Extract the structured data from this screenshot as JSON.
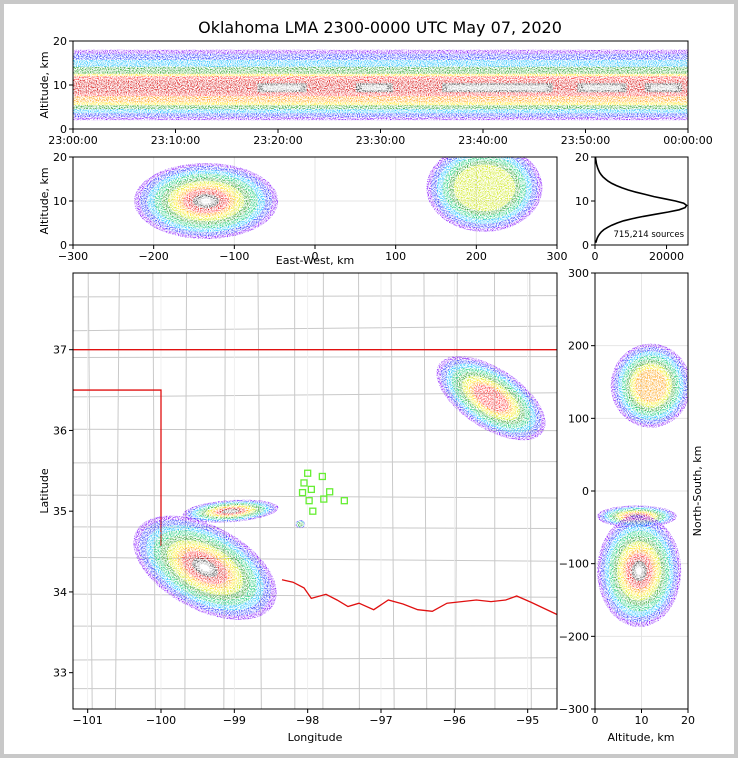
{
  "chart_data": [
    {
      "id": "time-height",
      "type": "heatmap",
      "title": "Oklahoma LMA 2300-0000 UTC May 07, 2020",
      "xlabel": "",
      "ylabel": "Altitude, km",
      "xlim": [
        0,
        60
      ],
      "ylim": [
        0,
        20
      ],
      "x_ticks": [
        {
          "v": 0,
          "label": "23:00:00"
        },
        {
          "v": 10,
          "label": "23:10:00"
        },
        {
          "v": 20,
          "label": "23:20:00"
        },
        {
          "v": 30,
          "label": "23:30:00"
        },
        {
          "v": 40,
          "label": "23:40:00"
        },
        {
          "v": 50,
          "label": "23:50:00"
        },
        {
          "v": 60,
          "label": "00:00:00"
        }
      ],
      "y_ticks": [
        0,
        10,
        20
      ],
      "source_band_altitude_km": [
        2,
        18
      ],
      "peak_density_altitude_km": 9.5
    },
    {
      "id": "east-west",
      "type": "heatmap",
      "xlabel": "East-West, km",
      "ylabel": "Altitude, km",
      "xlim": [
        -300,
        300
      ],
      "ylim": [
        0,
        20
      ],
      "x_ticks": [
        -300,
        -200,
        -100,
        0,
        100,
        200,
        300
      ],
      "y_ticks": [
        0,
        10,
        20
      ]
    },
    {
      "id": "altitude-histogram",
      "type": "line",
      "xlim": [
        0,
        26000
      ],
      "ylim": [
        0,
        20
      ],
      "x_ticks": [
        0,
        20000
      ],
      "y_ticks": [
        0,
        10,
        20
      ],
      "annotation": "715,214 sources",
      "series": [
        {
          "name": "sources",
          "altitude": [
            0.5,
            1,
            1.5,
            2,
            2.5,
            3,
            3.5,
            4,
            4.5,
            5,
            5.5,
            6,
            6.5,
            7,
            7.5,
            8,
            8.5,
            9,
            9.5,
            10,
            10.5,
            11,
            11.5,
            12,
            12.5,
            13,
            13.5,
            14,
            14.5,
            15,
            15.5,
            16,
            16.5,
            17,
            17.5,
            18,
            18.5,
            19,
            19.5,
            20
          ],
          "count": [
            200,
            400,
            600,
            900,
            1300,
            1800,
            2500,
            3500,
            4700,
            6200,
            8000,
            10500,
            13500,
            17000,
            20500,
            23500,
            25200,
            25600,
            24800,
            22500,
            19500,
            16500,
            14000,
            11500,
            9300,
            7500,
            6000,
            4700,
            3700,
            2900,
            2200,
            1700,
            1300,
            1000,
            750,
            550,
            400,
            300,
            200,
            150
          ]
        }
      ]
    },
    {
      "id": "plan-view",
      "type": "heatmap",
      "xlabel": "Longitude",
      "ylabel": "Latitude",
      "xlim": [
        -101.2,
        -94.6
      ],
      "ylim": [
        32.55,
        37.95
      ],
      "x_ticks": [
        -101,
        -100,
        -99,
        -98,
        -97,
        -96,
        -95
      ],
      "y_ticks": [
        33,
        34,
        35,
        36,
        37
      ],
      "stations": [
        {
          "lon": -98.0,
          "lat": 35.47
        },
        {
          "lon": -97.8,
          "lat": 35.43
        },
        {
          "lon": -98.05,
          "lat": 35.35
        },
        {
          "lon": -97.95,
          "lat": 35.27
        },
        {
          "lon": -98.07,
          "lat": 35.23
        },
        {
          "lon": -97.7,
          "lat": 35.24
        },
        {
          "lon": -97.78,
          "lat": 35.15
        },
        {
          "lon": -97.98,
          "lat": 35.13
        },
        {
          "lon": -97.5,
          "lat": 35.13
        },
        {
          "lon": -97.93,
          "lat": 35.0
        }
      ]
    },
    {
      "id": "north-south",
      "type": "heatmap",
      "xlabel": "Altitude, km",
      "ylabel": "North-South, km",
      "xlim": [
        0,
        20
      ],
      "ylim": [
        -300,
        300
      ],
      "x_ticks": [
        0,
        10,
        20
      ],
      "y_ticks": [
        -300,
        -200,
        -100,
        0,
        100,
        200,
        300
      ]
    }
  ]
}
